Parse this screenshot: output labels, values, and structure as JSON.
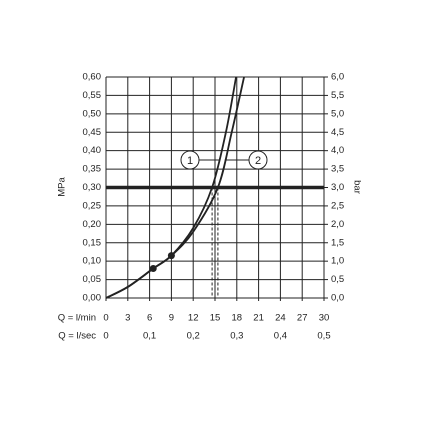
{
  "chart_data": {
    "type": "line",
    "y_label": "MPa",
    "y2_label": "bar",
    "x_label": "Q = l/min",
    "x2_label": "Q = l/sec",
    "xlim": [
      0,
      30
    ],
    "xticks": [
      0,
      3,
      6,
      9,
      12,
      15,
      18,
      21,
      24,
      27,
      30
    ],
    "x2lim": [
      0,
      0.5
    ],
    "x2ticks": [
      0,
      {
        "value": 0.1,
        "label": "0,1"
      },
      {
        "value": 0.2,
        "label": "0,2"
      },
      {
        "value": 0.3,
        "label": "0,3"
      },
      {
        "value": 0.4,
        "label": "0,4"
      },
      {
        "value": 0.5,
        "label": "0,5"
      }
    ],
    "ylim": [
      0,
      0.6
    ],
    "yticks": [
      {
        "value": 0,
        "label": "0,00"
      },
      {
        "value": 0.05,
        "label": "0,05"
      },
      {
        "value": 0.1,
        "label": "0,10"
      },
      {
        "value": 0.15,
        "label": "0,15"
      },
      {
        "value": 0.2,
        "label": "0,20"
      },
      {
        "value": 0.25,
        "label": "0,25"
      },
      {
        "value": 0.3,
        "label": "0,30"
      },
      {
        "value": 0.35,
        "label": "0,35"
      },
      {
        "value": 0.4,
        "label": "0,40"
      },
      {
        "value": 0.45,
        "label": "0,45"
      },
      {
        "value": 0.5,
        "label": "0,50"
      },
      {
        "value": 0.55,
        "label": "0,55"
      },
      {
        "value": 0.6,
        "label": "0,60"
      }
    ],
    "y2lim": [
      0,
      6
    ],
    "y2ticks": [
      {
        "value": 0,
        "label": "0,0"
      },
      {
        "value": 0.5,
        "label": "0,5"
      },
      {
        "value": 1,
        "label": "1,0"
      },
      {
        "value": 1.5,
        "label": "1,5"
      },
      {
        "value": 2,
        "label": "2,0"
      },
      {
        "value": 2.5,
        "label": "2,5"
      },
      {
        "value": 3,
        "label": "3,0"
      },
      {
        "value": 3.5,
        "label": "3,5"
      },
      {
        "value": 4,
        "label": "4,0"
      },
      {
        "value": 4.5,
        "label": "4,5"
      },
      {
        "value": 5,
        "label": "5,0"
      },
      {
        "value": 5.5,
        "label": "5,5"
      },
      {
        "value": 6,
        "label": "6,0"
      }
    ],
    "grid": true,
    "reference_y": 0.3,
    "series": [
      {
        "name": "1",
        "color": "#222222",
        "x": [
          0,
          3,
          6.5,
          9,
          12,
          14.6,
          16.5,
          17.9
        ],
        "values": [
          0,
          0.03,
          0.08,
          0.115,
          0.19,
          0.3,
          0.45,
          0.6
        ]
      },
      {
        "name": "2",
        "color": "#222222",
        "x": [
          0,
          3,
          6.5,
          9,
          12,
          15.4,
          17.3,
          19
        ],
        "values": [
          0,
          0.03,
          0.08,
          0.115,
          0.18,
          0.3,
          0.45,
          0.6
        ]
      }
    ],
    "operating_points": {
      "x": [
        6.5,
        9
      ],
      "values": [
        0.08,
        0.115
      ]
    }
  }
}
